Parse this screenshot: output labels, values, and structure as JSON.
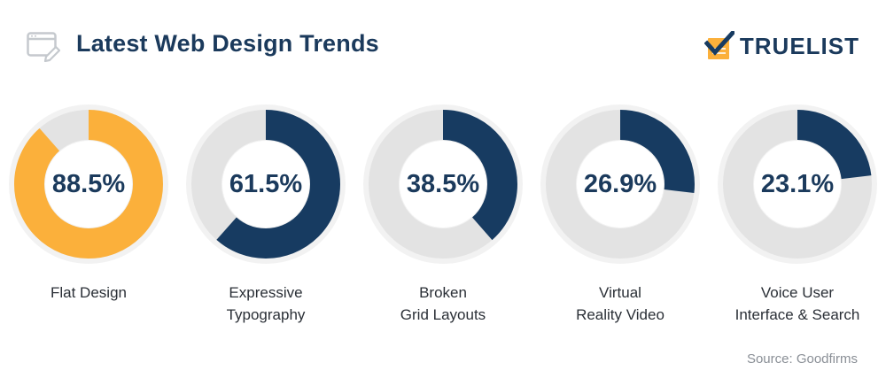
{
  "header": {
    "title": "Latest Web Design Trends",
    "icon": "browser-edit-icon",
    "logo_text": "TRUELIST",
    "logo_icon": "checklist-icon"
  },
  "colors": {
    "navy": "#173b61",
    "orange": "#fbb03b",
    "track": "#e3e3e3",
    "outer_ring": "#f2f2f2"
  },
  "chart_data": {
    "type": "pie",
    "variant": "donut",
    "unit": "%",
    "categories": [
      [
        "Flat Design"
      ],
      [
        "Expressive",
        "Typography"
      ],
      [
        "Broken",
        "Grid Layouts"
      ],
      [
        "Virtual",
        "Reality Video"
      ],
      [
        "Voice User",
        "Interface & Search"
      ]
    ],
    "values": [
      88.5,
      61.5,
      38.5,
      26.9,
      23.1
    ],
    "value_labels": [
      "88.5%",
      "61.5%",
      "38.5%",
      "26.9%",
      "23.1%"
    ],
    "highlight_index": 0
  },
  "source": "Source: Goodfirms"
}
